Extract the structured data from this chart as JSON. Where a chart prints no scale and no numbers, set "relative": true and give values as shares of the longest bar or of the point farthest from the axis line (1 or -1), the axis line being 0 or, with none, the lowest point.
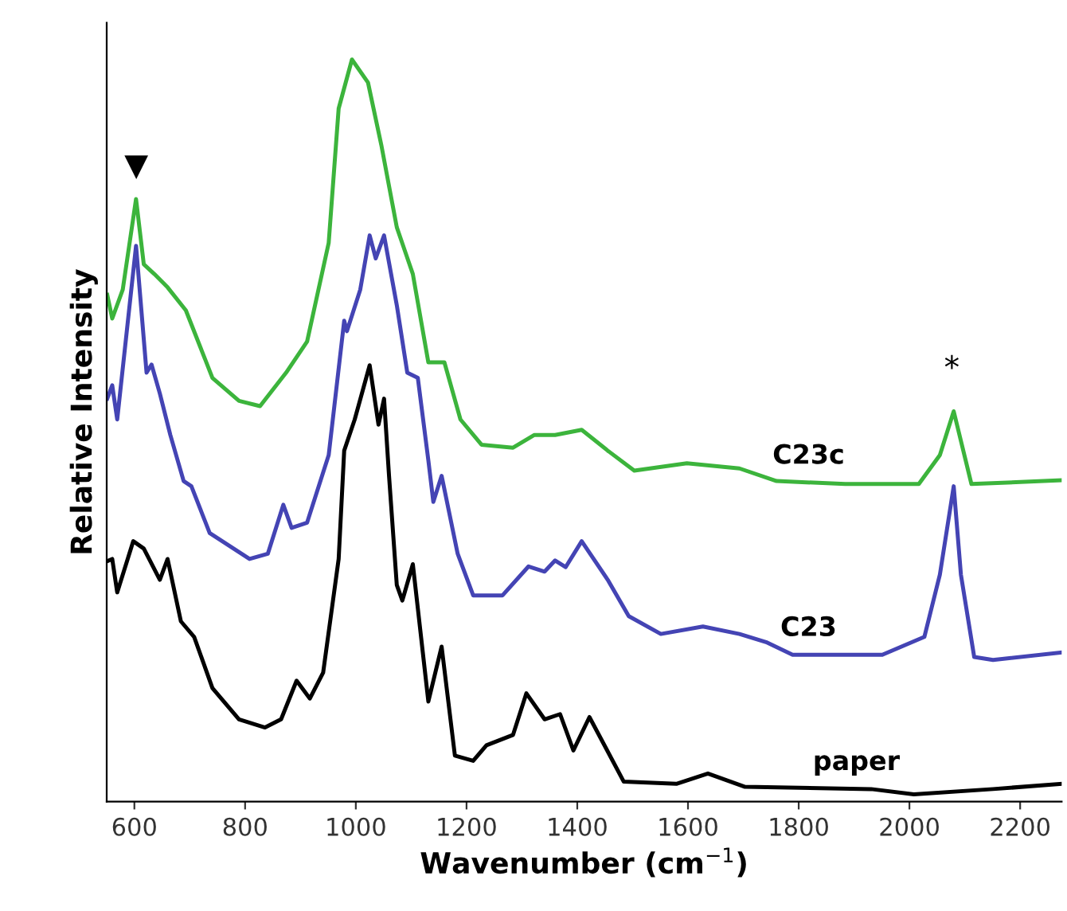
{
  "chart_data": {
    "type": "line",
    "relative": true,
    "xlabel": "Wavenumber (cm$^{−1}$)",
    "ylabel": "Relative Intensity",
    "xlim": [
      550,
      2275
    ],
    "xticks": [
      600,
      800,
      1000,
      1200,
      1400,
      1600,
      1800,
      2000,
      2200
    ],
    "grid": false,
    "legend": false,
    "marker": "none",
    "line_style": "solid",
    "tick_labels": "x",
    "series": [
      {
        "name": "C23c",
        "color": "#3cb43c",
        "x": [
          551,
          560,
          579,
          603,
          617,
          636,
          660,
          693,
          741,
          789,
          827,
          874,
          912,
          951,
          969,
          993,
          1022,
          1046,
          1074,
          1103,
          1131,
          1160,
          1189,
          1227,
          1284,
          1322,
          1360,
          1408,
          1455,
          1503,
          1598,
          1693,
          1760,
          1884,
          2017,
          2055,
          2080,
          2112,
          2274
        ],
        "values": [
          0.683,
          0.651,
          0.69,
          0.812,
          0.724,
          0.711,
          0.693,
          0.662,
          0.571,
          0.54,
          0.533,
          0.578,
          0.62,
          0.753,
          0.934,
          1,
          0.969,
          0.885,
          0.774,
          0.711,
          0.592,
          0.592,
          0.515,
          0.481,
          0.477,
          0.494,
          0.494,
          0.501,
          0.473,
          0.446,
          0.456,
          0.449,
          0.432,
          0.428,
          0.428,
          0.467,
          0.526,
          0.428,
          0.433
        ]
      },
      {
        "name": "C23",
        "color": "#4444b4",
        "x": [
          551,
          560,
          569,
          603,
          622,
          631,
          646,
          665,
          689,
          703,
          736,
          808,
          841,
          869,
          884,
          912,
          951,
          979,
          984,
          1008,
          1025,
          1036,
          1051,
          1074,
          1093,
          1112,
          1131,
          1140,
          1155,
          1184,
          1212,
          1265,
          1312,
          1341,
          1360,
          1379,
          1408,
          1455,
          1493,
          1551,
          1627,
          1693,
          1741,
          1789,
          1951,
          2027,
          2055,
          2080,
          2093,
          2117,
          2151,
          2274
        ],
        "values": [
          0.543,
          0.561,
          0.515,
          0.749,
          0.578,
          0.589,
          0.55,
          0.494,
          0.432,
          0.425,
          0.362,
          0.327,
          0.334,
          0.4,
          0.369,
          0.376,
          0.467,
          0.648,
          0.634,
          0.69,
          0.763,
          0.732,
          0.763,
          0.669,
          0.578,
          0.571,
          0.46,
          0.404,
          0.439,
          0.334,
          0.278,
          0.278,
          0.317,
          0.31,
          0.325,
          0.316,
          0.351,
          0.299,
          0.25,
          0.226,
          0.236,
          0.226,
          0.215,
          0.198,
          0.198,
          0.222,
          0.306,
          0.425,
          0.306,
          0.195,
          0.191,
          0.201
        ]
      },
      {
        "name": "paper",
        "color": "#000000",
        "x": [
          551,
          560,
          569,
          598,
          617,
          646,
          660,
          684,
          708,
          741,
          789,
          836,
          865,
          893,
          917,
          941,
          969,
          979,
          998,
          1025,
          1041,
          1051,
          1060,
          1074,
          1084,
          1103,
          1131,
          1155,
          1179,
          1212,
          1236,
          1284,
          1308,
          1341,
          1369,
          1393,
          1422,
          1484,
          1579,
          1636,
          1703,
          1931,
          2008,
          2151,
          2274
        ],
        "values": [
          0.324,
          0.327,
          0.282,
          0.351,
          0.341,
          0.299,
          0.327,
          0.243,
          0.222,
          0.153,
          0.111,
          0.1,
          0.111,
          0.163,
          0.139,
          0.174,
          0.327,
          0.473,
          0.515,
          0.588,
          0.508,
          0.543,
          0.439,
          0.292,
          0.271,
          0.32,
          0.135,
          0.209,
          0.062,
          0.055,
          0.076,
          0.09,
          0.146,
          0.111,
          0.118,
          0.069,
          0.114,
          0.027,
          0.024,
          0.038,
          0.02,
          0.017,
          0.01,
          0.017,
          0.024
        ]
      }
    ],
    "annotations": [
      "▼",
      "*"
    ]
  }
}
